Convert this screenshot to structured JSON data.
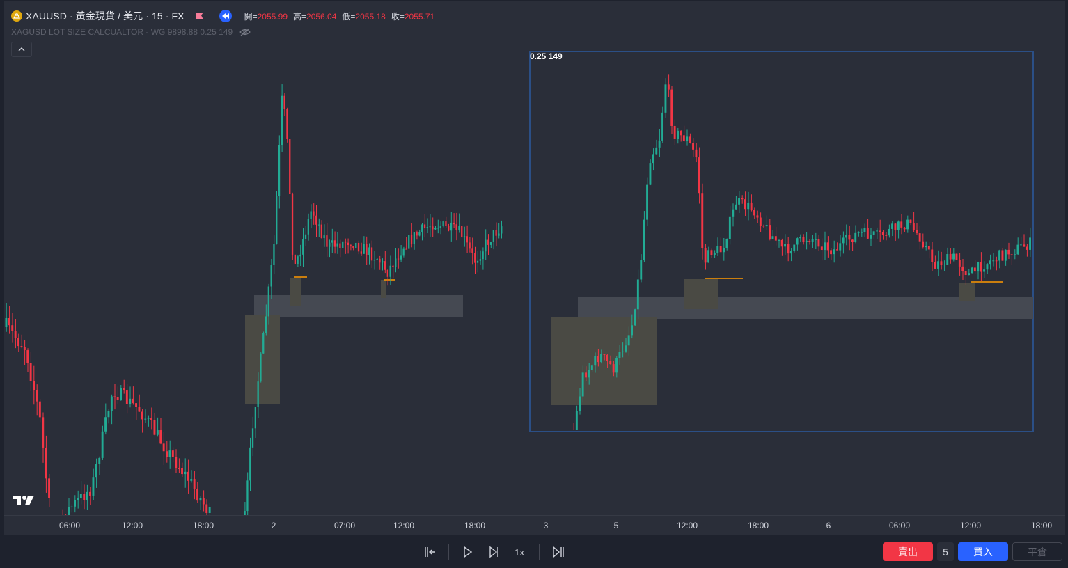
{
  "header": {
    "symbol": "XAUUSD · 黃金現貨 / 美元 · 15 · FX",
    "ohlc": {
      "open_label": "開=",
      "open_value": "2055.99",
      "high_label": "高=",
      "high_value": "2056.04",
      "low_label": "低=",
      "low_value": "2055.18",
      "close_label": "收=",
      "close_value": "2055.71"
    },
    "icons": {
      "symbol": "gold-coin-icon",
      "flag": "flag-icon",
      "replay": "replay-rewind-icon"
    }
  },
  "indicator": {
    "text": "XAGUSD LOT SIZE CALCUALTOR - WG 9898.88 0.25 149",
    "visibility_icon": "eye-crossed-icon"
  },
  "inset": {
    "label": "0.25 149"
  },
  "time_axis": {
    "ticks": [
      "06:00",
      "12:00",
      "18:00",
      "2",
      "07:00",
      "12:00",
      "18:00",
      "3",
      "5",
      "12:00",
      "18:00",
      "6",
      "06:00",
      "12:00",
      "18:00"
    ]
  },
  "replay_controls": {
    "speed": "1x",
    "icons": [
      "jump-to-bar-icon",
      "play-icon",
      "step-forward-icon",
      "jump-to-realtime-icon"
    ]
  },
  "trading": {
    "sell_label": "賣出",
    "quantity": "5",
    "buy_label": "買入",
    "close_label": "平倉"
  },
  "colors": {
    "background": "#2a2e39",
    "up": "#22ab94",
    "down": "#f23645",
    "accent": "#2962ff",
    "level_line": "#ff9800"
  }
}
